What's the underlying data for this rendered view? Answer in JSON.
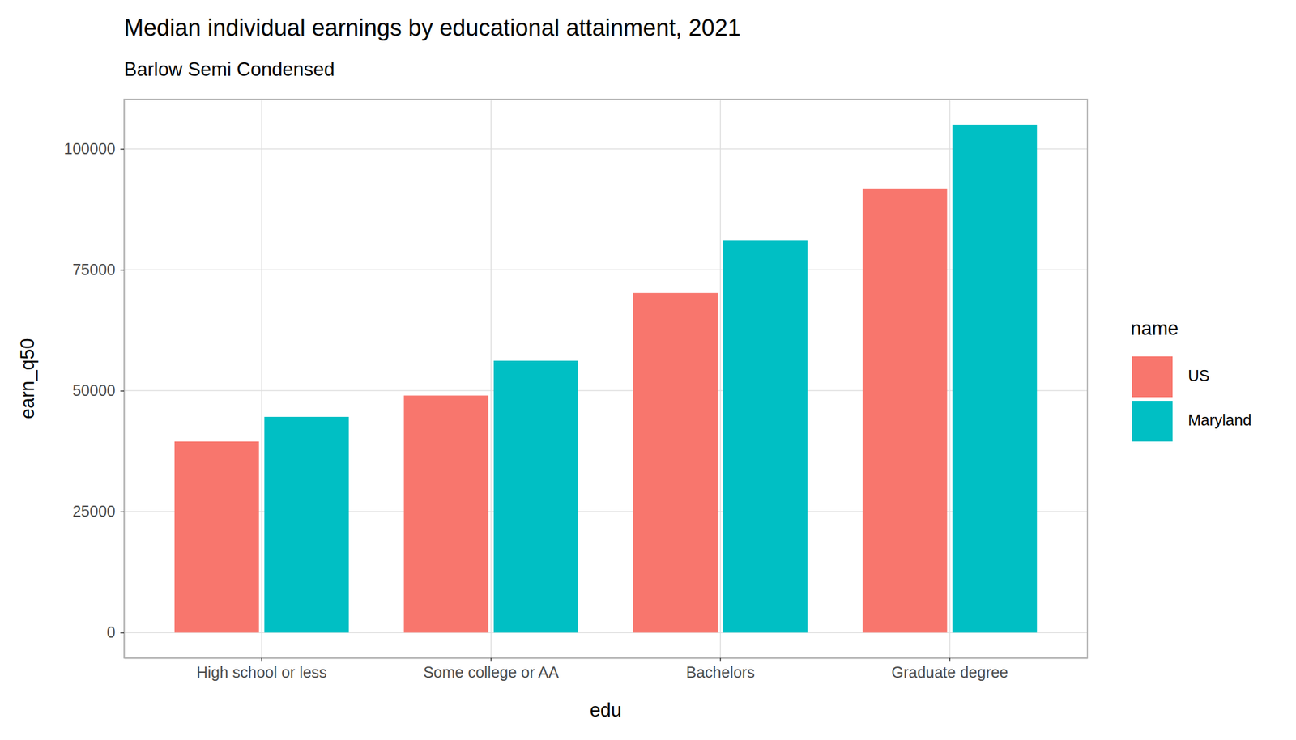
{
  "chart_data": {
    "type": "bar",
    "title": "Median individual earnings by educational attainment, 2021",
    "subtitle": "Barlow Semi Condensed",
    "x_label": "edu",
    "y_label": "earn_q50",
    "legend_title": "name",
    "categories": [
      "High school or less",
      "Some college or AA",
      "Bachelors",
      "Graduate degree"
    ],
    "series": [
      {
        "name": "US",
        "color": "#F8766D",
        "values": [
          39500,
          49000,
          70200,
          91800
        ]
      },
      {
        "name": "Maryland",
        "color": "#00BFC4",
        "values": [
          44600,
          56200,
          81000,
          105000
        ]
      }
    ],
    "ylim": [
      -5250,
      110250
    ],
    "yticks": [
      0,
      25000,
      50000,
      75000,
      100000
    ],
    "grid": true,
    "legend": "right"
  }
}
